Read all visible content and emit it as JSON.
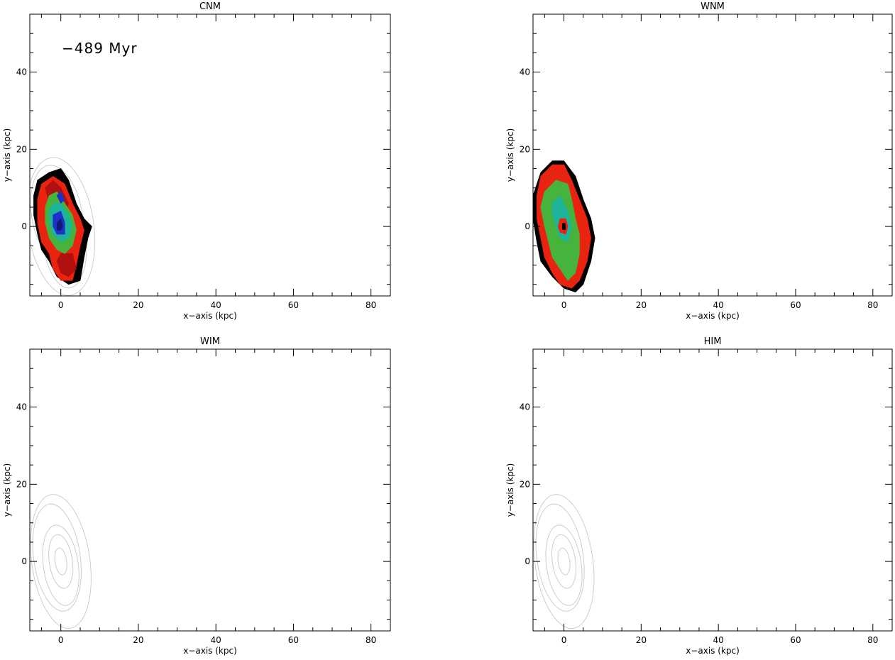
{
  "colors": {
    "background": "#ffffff",
    "axes": "#000000",
    "contour_line": "#c8c8c8",
    "level_black": "#000000",
    "level_red": "#e8230f",
    "level_darkred": "#b01010",
    "level_green": "#46b43c",
    "level_teal": "#1eb49b",
    "level_blue": "#1e32c8",
    "level_navy": "#10187a"
  },
  "chart_data": [
    {
      "type": "contour",
      "title": "CNM",
      "annotation": "−489 Myr",
      "xlabel": "x−axis (kpc)",
      "ylabel": "y−axis (kpc)",
      "xlim": [
        -8,
        85
      ],
      "ylim": [
        -18,
        55
      ],
      "xticks": [
        0,
        20,
        40,
        60,
        80
      ],
      "yticks": [
        0,
        20,
        40
      ],
      "grid": false,
      "galaxy_center": [
        0,
        0
      ],
      "filled": true,
      "levels": [
        {
          "color": "#000000",
          "outline": [
            [
              -6,
              12
            ],
            [
              -3,
              14
            ],
            [
              0,
              15
            ],
            [
              2,
              12
            ],
            [
              4,
              6
            ],
            [
              6,
              2
            ],
            [
              8,
              0
            ],
            [
              7,
              -3
            ],
            [
              6,
              -8
            ],
            [
              5,
              -14
            ],
            [
              2,
              -15
            ],
            [
              -1,
              -13
            ],
            [
              -3,
              -9
            ],
            [
              -5,
              -6
            ],
            [
              -6,
              -2
            ],
            [
              -7,
              3
            ],
            [
              -7,
              8
            ]
          ]
        },
        {
          "color": "#e8230f",
          "outline": [
            [
              -5,
              11
            ],
            [
              -2,
              13
            ],
            [
              1,
              11
            ],
            [
              3,
              6
            ],
            [
              5,
              2
            ],
            [
              6,
              -1
            ],
            [
              5,
              -5
            ],
            [
              4,
              -10
            ],
            [
              3,
              -14
            ],
            [
              0,
              -14
            ],
            [
              -2,
              -11
            ],
            [
              -3,
              -7
            ],
            [
              -5,
              -4
            ],
            [
              -6,
              1
            ],
            [
              -6,
              7
            ]
          ]
        },
        {
          "color": "#b01010",
          "outline": [
            [
              -4,
              10
            ],
            [
              -2,
              12
            ],
            [
              0,
              10
            ],
            [
              2,
              6
            ],
            [
              1,
              3
            ],
            [
              -1,
              4
            ],
            [
              -3,
              6
            ]
          ]
        },
        {
          "color": "#b01010",
          "outline": [
            [
              0,
              -7
            ],
            [
              3,
              -7
            ],
            [
              4,
              -11
            ],
            [
              2,
              -13
            ],
            [
              0,
              -12
            ],
            [
              -1,
              -9
            ]
          ]
        },
        {
          "color": "#46b43c",
          "outline": [
            [
              -3,
              8
            ],
            [
              -1,
              9
            ],
            [
              1,
              6
            ],
            [
              3,
              3
            ],
            [
              4,
              -1
            ],
            [
              3,
              -5
            ],
            [
              1,
              -7
            ],
            [
              -1,
              -6
            ],
            [
              -3,
              -3
            ],
            [
              -4,
              1
            ],
            [
              -4,
              5
            ]
          ]
        },
        {
          "color": "#1eb49b",
          "outline": [
            [
              -2,
              6
            ],
            [
              0,
              6
            ],
            [
              2,
              3
            ],
            [
              3,
              0
            ],
            [
              2,
              -3
            ],
            [
              0,
              -4
            ],
            [
              -2,
              -2
            ],
            [
              -3,
              1
            ],
            [
              -3,
              4
            ]
          ]
        },
        {
          "color": "#1e32c8",
          "outline": [
            [
              -2,
              3
            ],
            [
              0,
              4
            ],
            [
              1,
              1
            ],
            [
              1,
              -2
            ],
            [
              -1,
              -2
            ],
            [
              -2,
              0
            ]
          ]
        },
        {
          "color": "#10187a",
          "outline": [
            [
              -1,
              1
            ],
            [
              0,
              2
            ],
            [
              0.5,
              0
            ],
            [
              0,
              -1
            ],
            [
              -1,
              -1
            ]
          ]
        },
        {
          "color": "#1e32c8",
          "outline": [
            [
              -1,
              8
            ],
            [
              0,
              9
            ],
            [
              1,
              7
            ],
            [
              0,
              6
            ]
          ]
        }
      ],
      "gray_outlines": [
        {
          "cx": 0,
          "cy": 0,
          "rx": 8.5,
          "ry": 18,
          "rot": -8
        },
        {
          "cx": -1,
          "cy": 3,
          "rx": 6.5,
          "ry": 13,
          "rot": -10
        },
        {
          "cx": 1,
          "cy": -4,
          "rx": 5.5,
          "ry": 12,
          "rot": -6
        },
        {
          "cx": 0,
          "cy": 0,
          "rx": 4,
          "ry": 8,
          "rot": -10
        }
      ]
    },
    {
      "type": "contour",
      "title": "WNM",
      "xlabel": "x−axis (kpc)",
      "ylabel": "y−axis (kpc)",
      "xlim": [
        -8,
        85
      ],
      "ylim": [
        -18,
        55
      ],
      "xticks": [
        0,
        20,
        40,
        60,
        80
      ],
      "yticks": [
        0,
        20,
        40
      ],
      "grid": false,
      "galaxy_center": [
        0,
        0
      ],
      "filled": true,
      "levels": [
        {
          "color": "#000000",
          "outline": [
            [
              -6,
              14
            ],
            [
              -3,
              17
            ],
            [
              0,
              17
            ],
            [
              3,
              13
            ],
            [
              5,
              7
            ],
            [
              7,
              2
            ],
            [
              8,
              -3
            ],
            [
              7,
              -9
            ],
            [
              5,
              -15
            ],
            [
              3,
              -17
            ],
            [
              0,
              -16
            ],
            [
              -3,
              -13
            ],
            [
              -6,
              -9
            ],
            [
              -7,
              -4
            ],
            [
              -8,
              2
            ],
            [
              -8,
              8
            ]
          ]
        },
        {
          "color": "#e8230f",
          "outline": [
            [
              -6,
              13
            ],
            [
              -3,
              16
            ],
            [
              0,
              16
            ],
            [
              2,
              12
            ],
            [
              4,
              7
            ],
            [
              6,
              2
            ],
            [
              7,
              -3
            ],
            [
              6,
              -9
            ],
            [
              4,
              -14
            ],
            [
              2,
              -16
            ],
            [
              -1,
              -15
            ],
            [
              -3,
              -12
            ],
            [
              -5,
              -8
            ],
            [
              -6,
              -3
            ],
            [
              -7,
              2
            ],
            [
              -7,
              8
            ]
          ]
        },
        {
          "color": "#46b43c",
          "outline": [
            [
              -5,
              9
            ],
            [
              -2,
              12
            ],
            [
              1,
              11
            ],
            [
              2,
              7
            ],
            [
              3,
              2
            ],
            [
              4,
              -2
            ],
            [
              4,
              -7
            ],
            [
              3,
              -12
            ],
            [
              1,
              -14
            ],
            [
              -1,
              -11
            ],
            [
              -3,
              -8
            ],
            [
              -4,
              -4
            ],
            [
              -5,
              0
            ],
            [
              -6,
              5
            ]
          ]
        },
        {
          "color": "#1eb49b",
          "outline": [
            [
              -3,
              6
            ],
            [
              -1,
              8
            ],
            [
              1,
              4
            ],
            [
              2,
              0
            ],
            [
              1,
              -4
            ],
            [
              -1,
              -3
            ],
            [
              -2,
              0
            ],
            [
              -3,
              3
            ]
          ]
        },
        {
          "color": "#e8230f",
          "outline": [
            [
              -1,
              2
            ],
            [
              0.5,
              2
            ],
            [
              1,
              0
            ],
            [
              0.5,
              -2
            ],
            [
              -1,
              -1.5
            ],
            [
              -1.5,
              0
            ]
          ]
        },
        {
          "color": "#000000",
          "outline": [
            [
              -0.4,
              0.8
            ],
            [
              0.3,
              0.8
            ],
            [
              0.4,
              -0.8
            ],
            [
              -0.4,
              -0.8
            ]
          ]
        }
      ],
      "gray_outlines": []
    },
    {
      "type": "contour",
      "title": "WIM",
      "xlabel": "x−axis (kpc)",
      "ylabel": "y−axis (kpc)",
      "xlim": [
        -8,
        85
      ],
      "ylim": [
        -18,
        55
      ],
      "xticks": [
        0,
        20,
        40,
        60,
        80
      ],
      "yticks": [
        0,
        20,
        40
      ],
      "grid": false,
      "galaxy_center": [
        0,
        0
      ],
      "filled": false,
      "levels": [],
      "gray_outlines": [
        {
          "cx": 0,
          "cy": 0,
          "rx": 7.5,
          "ry": 17.5,
          "rot": -8
        },
        {
          "cx": -1,
          "cy": 1,
          "rx": 6,
          "ry": 14,
          "rot": -8
        },
        {
          "cx": 0,
          "cy": -1,
          "rx": 4.5,
          "ry": 10.5,
          "rot": -8
        },
        {
          "cx": 0,
          "cy": 0,
          "rx": 3,
          "ry": 7,
          "rot": -8
        },
        {
          "cx": 0,
          "cy": 0,
          "rx": 1.5,
          "ry": 3.5,
          "rot": -8
        }
      ]
    },
    {
      "type": "contour",
      "title": "HIM",
      "xlabel": "x−axis (kpc)",
      "ylabel": "y−axis (kpc)",
      "xlim": [
        -8,
        85
      ],
      "ylim": [
        -18,
        55
      ],
      "xticks": [
        0,
        20,
        40,
        60,
        80
      ],
      "yticks": [
        0,
        20,
        40
      ],
      "grid": false,
      "galaxy_center": [
        0,
        0
      ],
      "filled": false,
      "levels": [],
      "gray_outlines": [
        {
          "cx": 0,
          "cy": 0,
          "rx": 7.5,
          "ry": 17.5,
          "rot": -8
        },
        {
          "cx": -1,
          "cy": 1,
          "rx": 6,
          "ry": 14,
          "rot": -8
        },
        {
          "cx": 0,
          "cy": -1,
          "rx": 4.5,
          "ry": 10.5,
          "rot": -8
        },
        {
          "cx": 0,
          "cy": 0,
          "rx": 3,
          "ry": 7,
          "rot": -8
        },
        {
          "cx": 0,
          "cy": 0,
          "rx": 1.5,
          "ry": 3.5,
          "rot": -8
        }
      ]
    }
  ]
}
